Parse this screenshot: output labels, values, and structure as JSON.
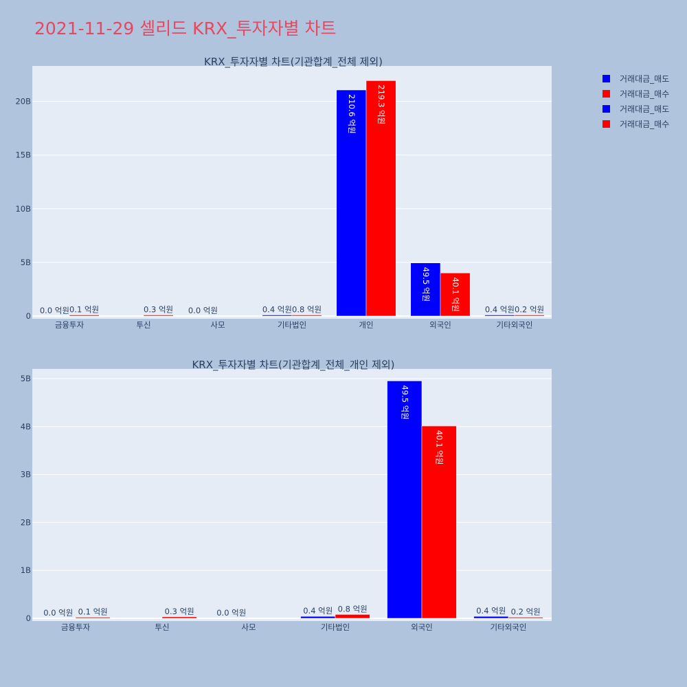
{
  "title": "2021-11-29 셀리드 KRX_투자자별 차트",
  "colors": {
    "sell": "#0000ff",
    "buy": "#ff0000",
    "plot_bg": "#e5ecf6",
    "page_bg": "#b0c4de",
    "title": "#e8475f"
  },
  "legend": [
    "거래대금_매도",
    "거래대금_매수",
    "거래대금_매도",
    "거래대금_매수"
  ],
  "chart_data": [
    {
      "type": "bar",
      "title": "KRX_투자자별 차트(기관합계_전체 제외)",
      "categories": [
        "금융투자",
        "투신",
        "사모",
        "기타법인",
        "개인",
        "외국인",
        "기타외국인"
      ],
      "series": [
        {
          "name": "거래대금_매도",
          "color": "#0000ff",
          "values": [
            0.0,
            0.0,
            0.0,
            40000000,
            21060000000,
            4950000000,
            40000000
          ],
          "labels": [
            "0.0 억원",
            "",
            "0.0 억원",
            "0.4 억원",
            "210.6 억원",
            "49.5 억원",
            "0.4 억원"
          ]
        },
        {
          "name": "거래대금_매수",
          "color": "#ff0000",
          "values": [
            10000000,
            30000000,
            0.0,
            80000000,
            21930000000,
            4010000000,
            20000000
          ],
          "labels": [
            "0.1 억원",
            "0.3 억원",
            "",
            "0.8 억원",
            "219.3 억원",
            "40.1 억원",
            "0.2 억원"
          ]
        }
      ],
      "yticks": [
        0,
        5000000000,
        10000000000,
        15000000000,
        20000000000
      ],
      "ytick_labels": [
        "0",
        "5B",
        "10B",
        "15B",
        "20B"
      ],
      "ylim": [
        0,
        23300000000
      ],
      "grid": true
    },
    {
      "type": "bar",
      "title": "KRX_투자자별 차트(기관합계_전체_개인 제외)",
      "categories": [
        "금융투자",
        "투신",
        "사모",
        "기타법인",
        "외국인",
        "기타외국인"
      ],
      "series": [
        {
          "name": "거래대금_매도",
          "color": "#0000ff",
          "values": [
            0.0,
            0.0,
            0.0,
            40000000,
            4950000000,
            40000000
          ],
          "labels": [
            "0.0 억원",
            "",
            "0.0 억원",
            "0.4 억원",
            "49.5 억원",
            "0.4 억원"
          ]
        },
        {
          "name": "거래대금_매수",
          "color": "#ff0000",
          "values": [
            10000000,
            30000000,
            0.0,
            80000000,
            4010000000,
            20000000
          ],
          "labels": [
            "0.1 억원",
            "0.3 억원",
            "",
            "0.8 억원",
            "40.1 억원",
            "0.2 억원"
          ]
        }
      ],
      "yticks": [
        0,
        1000000000,
        2000000000,
        3000000000,
        4000000000,
        5000000000
      ],
      "ytick_labels": [
        "0",
        "1B",
        "2B",
        "3B",
        "4B",
        "5B"
      ],
      "ylim": [
        0,
        5200000000
      ],
      "grid": true
    }
  ]
}
